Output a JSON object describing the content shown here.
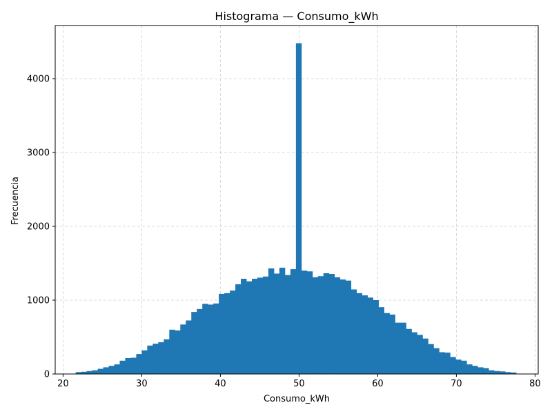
{
  "chart_data": {
    "type": "bar",
    "title": "Histograma — Consumo_kWh",
    "xlabel": "Consumo_kWh",
    "ylabel": "Frecuencia",
    "xlim": [
      19.0,
      80.4
    ],
    "ylim": [
      0,
      4720
    ],
    "x_ticks": [
      20,
      30,
      40,
      50,
      60,
      70,
      80
    ],
    "y_ticks": [
      0,
      1000,
      2000,
      3000,
      4000
    ],
    "grid": true,
    "bar_color": "#1f77b4",
    "bin_start": 21.6,
    "bin_width": 0.7,
    "values": [
      25,
      30,
      40,
      50,
      70,
      90,
      110,
      130,
      180,
      215,
      220,
      270,
      320,
      385,
      410,
      430,
      470,
      600,
      590,
      670,
      725,
      840,
      880,
      950,
      940,
      955,
      1085,
      1095,
      1130,
      1215,
      1290,
      1255,
      1290,
      1305,
      1320,
      1430,
      1360,
      1440,
      1340,
      1420,
      4480,
      1400,
      1390,
      1310,
      1325,
      1365,
      1355,
      1310,
      1280,
      1265,
      1145,
      1095,
      1065,
      1035,
      1000,
      905,
      825,
      805,
      695,
      695,
      610,
      565,
      530,
      480,
      405,
      350,
      295,
      290,
      230,
      195,
      180,
      130,
      110,
      90,
      80,
      50,
      40,
      35,
      25,
      20
    ]
  }
}
